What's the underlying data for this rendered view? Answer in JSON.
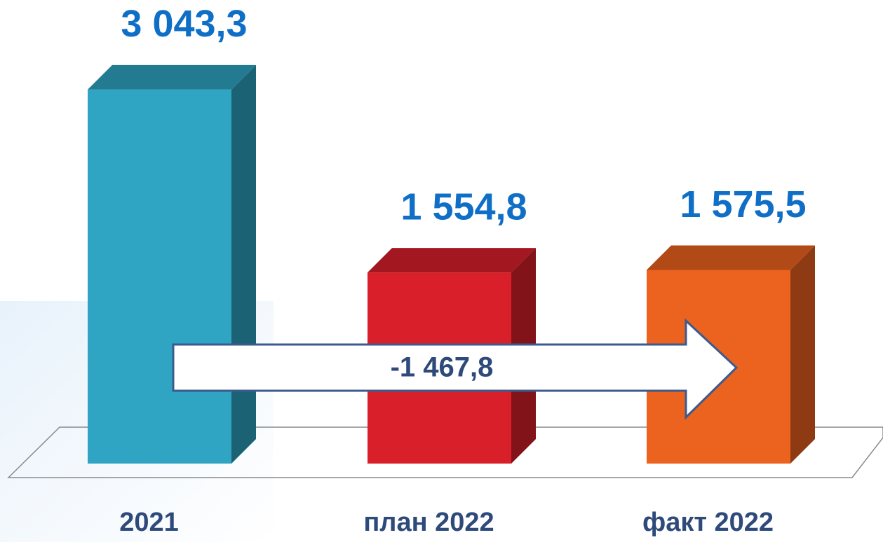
{
  "chart_data": {
    "type": "bar3d",
    "categories": [
      "2021",
      "план 2022",
      "факт 2022"
    ],
    "values": [
      3043.3,
      1554.8,
      1575.5
    ],
    "value_labels": [
      "3 043,3",
      "1 554,8",
      "1 575,5"
    ],
    "colors": [
      "#2fa4c3",
      "#d9202a",
      "#ec621f"
    ],
    "annotation": "-1 467,8"
  }
}
